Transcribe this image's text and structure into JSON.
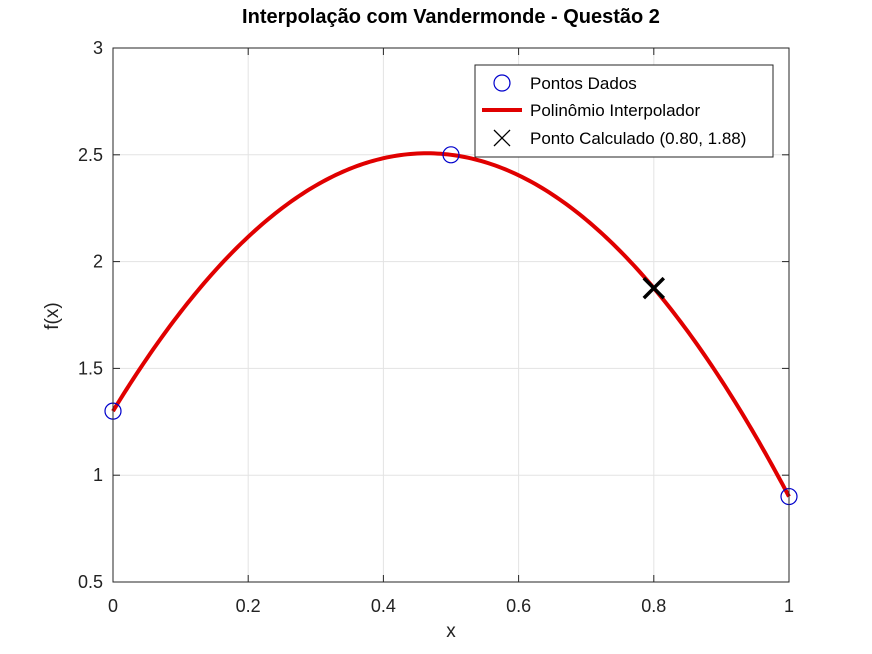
{
  "chart_data": {
    "type": "line",
    "title": "Interpolação com Vandermonde - Questão 2",
    "xlabel": "x",
    "ylabel": "f(x)",
    "xlim": [
      0,
      1
    ],
    "ylim": [
      0.5,
      3
    ],
    "xticks": [
      0,
      0.2,
      0.4,
      0.6,
      0.8,
      1
    ],
    "xtick_labels": [
      "0",
      "0.2",
      "0.4",
      "0.6",
      "0.8",
      "1"
    ],
    "yticks": [
      0.5,
      1,
      1.5,
      2,
      2.5,
      3
    ],
    "ytick_labels": [
      "0.5",
      "1",
      "1.5",
      "2",
      "2.5",
      "3"
    ],
    "grid": true,
    "legend_position": "top-right",
    "series": [
      {
        "name": "Pontos Dados",
        "kind": "scatter",
        "marker": "circle",
        "color": "#0000cc",
        "x": [
          0,
          0.5,
          1
        ],
        "y": [
          1.3,
          2.5,
          0.9
        ]
      },
      {
        "name": "Polinômio Interpolador",
        "kind": "line",
        "color": "#e00000",
        "polynomial_coefficients": [
          1.3,
          5.2,
          -5.6
        ]
      },
      {
        "name": "Ponto Calculado (0.80, 1.88)",
        "kind": "scatter",
        "marker": "cross",
        "color": "#000000",
        "x": [
          0.8
        ],
        "y": [
          1.876
        ]
      }
    ]
  }
}
